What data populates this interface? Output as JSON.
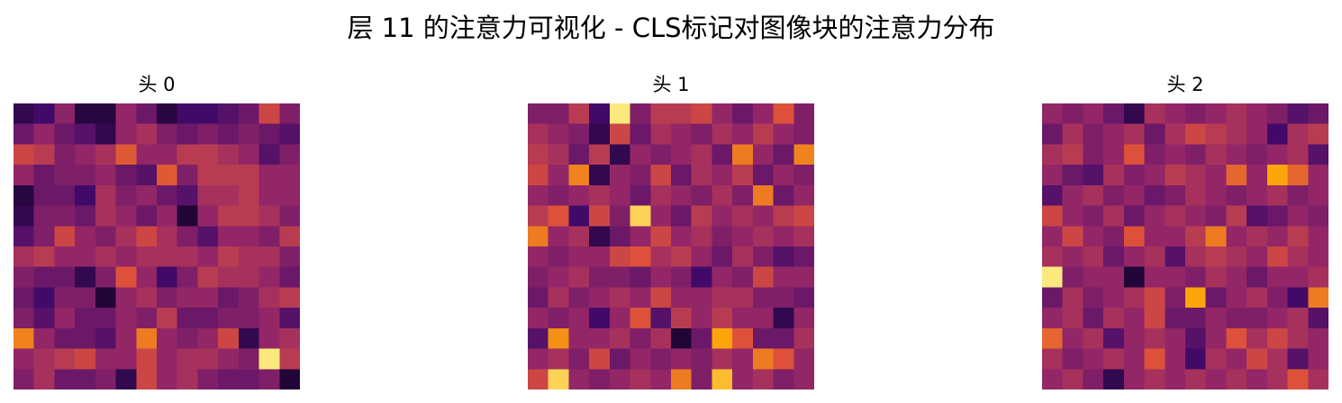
{
  "figure": {
    "title": "层 11 的注意力可视化 - CLS标记对图像块的注意力分布"
  },
  "colors": {
    "colormap": "inferno",
    "stops": [
      "#000004",
      "#420a68",
      "#932667",
      "#dd513a",
      "#fca50a",
      "#fcffa4"
    ]
  },
  "chart_data": [
    {
      "type": "heatmap",
      "title": "头 0",
      "rows": 14,
      "cols": 14,
      "axes_visible": false,
      "scale": "relative attention weight (0-1), estimated from colormap",
      "values": [
        [
          0.15,
          0.2,
          0.38,
          0.12,
          0.12,
          0.4,
          0.3,
          0.12,
          0.2,
          0.2,
          0.25,
          0.3,
          0.55,
          0.35
        ],
        [
          0.3,
          0.4,
          0.3,
          0.25,
          0.15,
          0.4,
          0.45,
          0.35,
          0.3,
          0.35,
          0.3,
          0.35,
          0.3,
          0.25
        ],
        [
          0.55,
          0.5,
          0.35,
          0.4,
          0.45,
          0.62,
          0.4,
          0.4,
          0.5,
          0.5,
          0.45,
          0.4,
          0.25,
          0.35
        ],
        [
          0.4,
          0.3,
          0.35,
          0.35,
          0.4,
          0.3,
          0.25,
          0.62,
          0.35,
          0.5,
          0.5,
          0.5,
          0.4,
          0.4
        ],
        [
          0.12,
          0.3,
          0.3,
          0.2,
          0.45,
          0.35,
          0.4,
          0.3,
          0.25,
          0.45,
          0.45,
          0.5,
          0.4,
          0.4
        ],
        [
          0.15,
          0.35,
          0.35,
          0.3,
          0.45,
          0.4,
          0.3,
          0.4,
          0.1,
          0.4,
          0.5,
          0.5,
          0.45,
          0.35
        ],
        [
          0.25,
          0.35,
          0.55,
          0.4,
          0.35,
          0.45,
          0.55,
          0.45,
          0.35,
          0.25,
          0.4,
          0.4,
          0.35,
          0.5
        ],
        [
          0.45,
          0.5,
          0.4,
          0.4,
          0.45,
          0.4,
          0.45,
          0.45,
          0.45,
          0.4,
          0.5,
          0.45,
          0.45,
          0.35
        ],
        [
          0.35,
          0.3,
          0.3,
          0.15,
          0.35,
          0.6,
          0.4,
          0.2,
          0.35,
          0.5,
          0.45,
          0.45,
          0.4,
          0.3
        ],
        [
          0.3,
          0.2,
          0.35,
          0.35,
          0.1,
          0.4,
          0.45,
          0.35,
          0.4,
          0.4,
          0.3,
          0.35,
          0.45,
          0.5
        ],
        [
          0.35,
          0.25,
          0.4,
          0.3,
          0.3,
          0.4,
          0.35,
          0.5,
          0.3,
          0.3,
          0.35,
          0.35,
          0.4,
          0.25
        ],
        [
          0.72,
          0.4,
          0.3,
          0.3,
          0.25,
          0.4,
          0.7,
          0.4,
          0.35,
          0.4,
          0.55,
          0.15,
          0.4,
          0.45
        ],
        [
          0.4,
          0.45,
          0.5,
          0.55,
          0.4,
          0.4,
          0.55,
          0.4,
          0.45,
          0.45,
          0.4,
          0.35,
          0.95,
          0.5
        ],
        [
          0.35,
          0.45,
          0.3,
          0.3,
          0.35,
          0.15,
          0.55,
          0.4,
          0.45,
          0.35,
          0.3,
          0.3,
          0.35,
          0.1
        ]
      ]
    },
    {
      "type": "heatmap",
      "title": "头 1",
      "rows": 14,
      "cols": 14,
      "axes_visible": false,
      "scale": "relative attention weight (0-1), estimated from colormap",
      "values": [
        [
          0.35,
          0.35,
          0.5,
          0.2,
          0.95,
          0.35,
          0.5,
          0.5,
          0.55,
          0.4,
          0.3,
          0.4,
          0.6,
          0.35
        ],
        [
          0.45,
          0.4,
          0.35,
          0.15,
          0.55,
          0.3,
          0.45,
          0.4,
          0.35,
          0.45,
          0.4,
          0.5,
          0.4,
          0.35
        ],
        [
          0.5,
          0.45,
          0.3,
          0.5,
          0.15,
          0.4,
          0.35,
          0.4,
          0.45,
          0.3,
          0.7,
          0.4,
          0.3,
          0.72
        ],
        [
          0.55,
          0.4,
          0.72,
          0.15,
          0.4,
          0.35,
          0.55,
          0.3,
          0.45,
          0.4,
          0.5,
          0.3,
          0.4,
          0.35
        ],
        [
          0.4,
          0.35,
          0.4,
          0.45,
          0.4,
          0.3,
          0.45,
          0.4,
          0.35,
          0.45,
          0.35,
          0.7,
          0.3,
          0.4
        ],
        [
          0.5,
          0.6,
          0.2,
          0.55,
          0.35,
          0.9,
          0.4,
          0.3,
          0.5,
          0.4,
          0.45,
          0.4,
          0.5,
          0.55
        ],
        [
          0.7,
          0.4,
          0.45,
          0.15,
          0.3,
          0.4,
          0.55,
          0.4,
          0.45,
          0.35,
          0.4,
          0.45,
          0.4,
          0.45
        ],
        [
          0.4,
          0.35,
          0.4,
          0.4,
          0.55,
          0.6,
          0.45,
          0.5,
          0.4,
          0.3,
          0.45,
          0.35,
          0.25,
          0.3
        ],
        [
          0.35,
          0.4,
          0.45,
          0.35,
          0.35,
          0.3,
          0.4,
          0.35,
          0.2,
          0.4,
          0.35,
          0.55,
          0.4,
          0.4
        ],
        [
          0.3,
          0.45,
          0.35,
          0.4,
          0.45,
          0.4,
          0.55,
          0.4,
          0.4,
          0.45,
          0.45,
          0.35,
          0.35,
          0.3
        ],
        [
          0.4,
          0.35,
          0.4,
          0.2,
          0.4,
          0.6,
          0.25,
          0.5,
          0.4,
          0.5,
          0.4,
          0.4,
          0.15,
          0.4
        ],
        [
          0.25,
          0.75,
          0.4,
          0.4,
          0.45,
          0.35,
          0.45,
          0.1,
          0.3,
          0.8,
          0.6,
          0.3,
          0.3,
          0.45
        ],
        [
          0.4,
          0.45,
          0.35,
          0.55,
          0.3,
          0.4,
          0.35,
          0.4,
          0.35,
          0.45,
          0.4,
          0.7,
          0.6,
          0.4
        ],
        [
          0.55,
          0.9,
          0.4,
          0.35,
          0.4,
          0.45,
          0.4,
          0.7,
          0.35,
          0.85,
          0.4,
          0.45,
          0.35,
          0.4
        ]
      ]
    },
    {
      "type": "heatmap",
      "title": "头 2",
      "rows": 14,
      "cols": 14,
      "axes_visible": false,
      "scale": "relative attention weight (0-1), estimated from colormap",
      "values": [
        [
          0.4,
          0.35,
          0.4,
          0.3,
          0.15,
          0.45,
          0.4,
          0.35,
          0.4,
          0.45,
          0.4,
          0.35,
          0.25,
          0.3
        ],
        [
          0.3,
          0.45,
          0.35,
          0.4,
          0.45,
          0.3,
          0.45,
          0.55,
          0.5,
          0.45,
          0.4,
          0.2,
          0.45,
          0.5
        ],
        [
          0.45,
          0.5,
          0.35,
          0.4,
          0.6,
          0.35,
          0.4,
          0.35,
          0.45,
          0.4,
          0.35,
          0.4,
          0.45,
          0.25
        ],
        [
          0.4,
          0.3,
          0.25,
          0.45,
          0.35,
          0.4,
          0.5,
          0.45,
          0.4,
          0.65,
          0.4,
          0.8,
          0.65,
          0.4
        ],
        [
          0.25,
          0.4,
          0.45,
          0.35,
          0.4,
          0.3,
          0.35,
          0.45,
          0.4,
          0.35,
          0.4,
          0.45,
          0.35,
          0.4
        ],
        [
          0.55,
          0.4,
          0.35,
          0.45,
          0.3,
          0.4,
          0.45,
          0.4,
          0.35,
          0.5,
          0.25,
          0.3,
          0.4,
          0.35
        ],
        [
          0.4,
          0.55,
          0.4,
          0.35,
          0.6,
          0.4,
          0.4,
          0.5,
          0.7,
          0.4,
          0.45,
          0.4,
          0.5,
          0.4
        ],
        [
          0.45,
          0.4,
          0.45,
          0.3,
          0.4,
          0.45,
          0.25,
          0.45,
          0.5,
          0.45,
          0.4,
          0.55,
          0.45,
          0.4
        ],
        [
          0.95,
          0.35,
          0.4,
          0.4,
          0.1,
          0.4,
          0.4,
          0.35,
          0.45,
          0.4,
          0.3,
          0.4,
          0.4,
          0.45
        ],
        [
          0.3,
          0.45,
          0.35,
          0.4,
          0.45,
          0.55,
          0.35,
          0.8,
          0.3,
          0.4,
          0.45,
          0.35,
          0.2,
          0.7
        ],
        [
          0.4,
          0.45,
          0.3,
          0.45,
          0.4,
          0.55,
          0.3,
          0.3,
          0.4,
          0.35,
          0.35,
          0.4,
          0.45,
          0.25
        ],
        [
          0.65,
          0.4,
          0.45,
          0.25,
          0.4,
          0.45,
          0.4,
          0.25,
          0.4,
          0.6,
          0.45,
          0.55,
          0.45,
          0.4
        ],
        [
          0.45,
          0.35,
          0.4,
          0.45,
          0.4,
          0.6,
          0.4,
          0.2,
          0.45,
          0.4,
          0.55,
          0.45,
          0.25,
          0.4
        ],
        [
          0.4,
          0.45,
          0.35,
          0.15,
          0.4,
          0.45,
          0.4,
          0.45,
          0.4,
          0.45,
          0.4,
          0.45,
          0.6,
          0.45
        ]
      ]
    }
  ]
}
